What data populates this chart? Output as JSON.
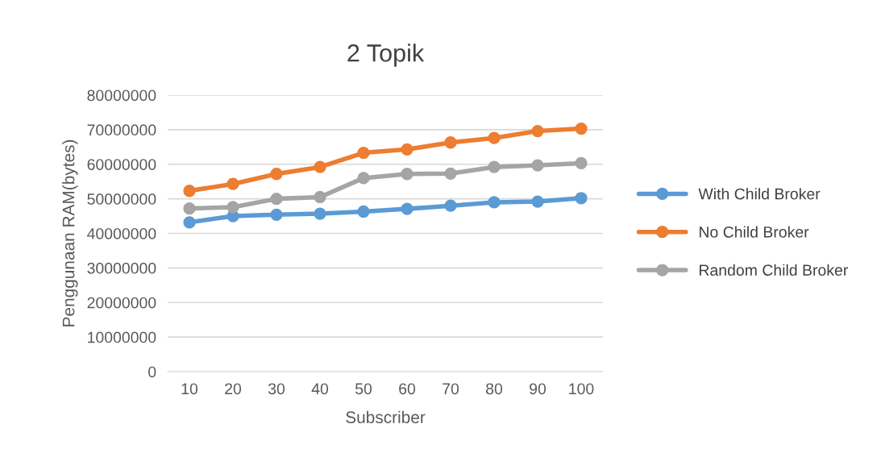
{
  "chart_data": {
    "type": "line",
    "title": "2 Topik",
    "xlabel": "Subscriber",
    "ylabel": "Penggunaan RAM(bytes)",
    "categories": [
      "10",
      "20",
      "30",
      "40",
      "50",
      "60",
      "70",
      "80",
      "90",
      "100"
    ],
    "series": [
      {
        "name": "With Child Broker",
        "color": "#5b9bd5",
        "values": [
          43200000,
          45000000,
          45400000,
          45700000,
          46300000,
          47100000,
          48000000,
          49000000,
          49200000,
          50200000
        ]
      },
      {
        "name": "No Child Broker",
        "color": "#ed7d31",
        "values": [
          52300000,
          54300000,
          57200000,
          59200000,
          63300000,
          64300000,
          66300000,
          67600000,
          69600000,
          70300000
        ]
      },
      {
        "name": "Random Child Broker",
        "color": "#a5a5a5",
        "values": [
          47200000,
          47600000,
          50000000,
          50500000,
          56000000,
          57200000,
          57300000,
          59200000,
          59700000,
          60300000
        ]
      }
    ],
    "ylim": [
      0,
      80000000
    ],
    "yticks": [
      0,
      10000000,
      20000000,
      30000000,
      40000000,
      50000000,
      60000000,
      70000000,
      80000000
    ],
    "grid": "y",
    "legend": "right",
    "marker": "circle",
    "line_style": "solid"
  }
}
